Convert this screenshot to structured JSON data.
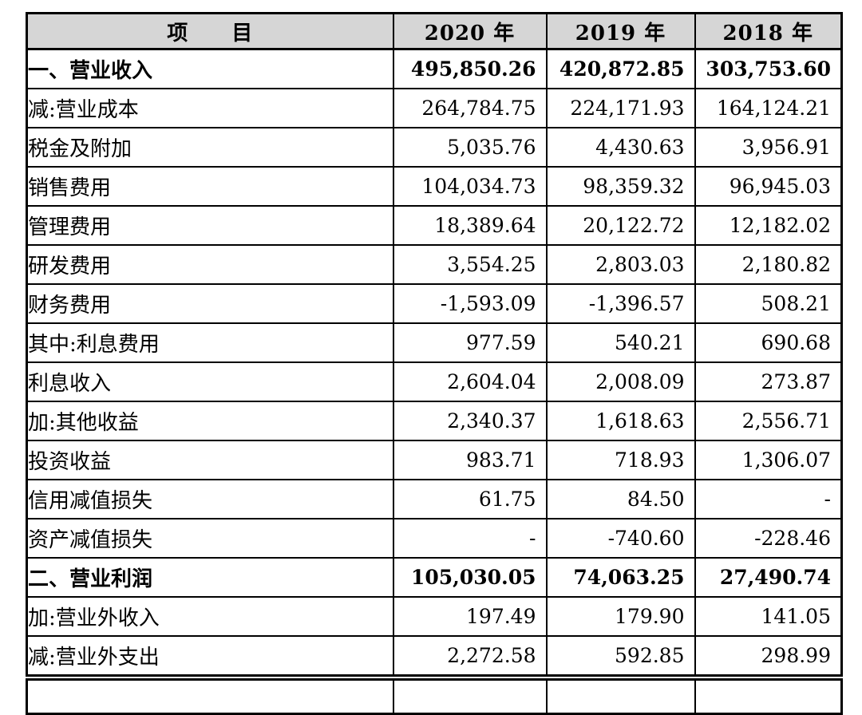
{
  "header": {
    "item_col": "项　　目",
    "year_cols": [
      "2020 年",
      "2019 年",
      "2018 年"
    ]
  },
  "table": {
    "rows": [
      {
        "label": "一、营业收入",
        "indent": 0,
        "bold": true,
        "values": [
          "495,850.26",
          "420,872.85",
          "303,753.60"
        ]
      },
      {
        "label": "减:营业成本",
        "indent": 1,
        "bold": false,
        "values": [
          "264,784.75",
          "224,171.93",
          "164,124.21"
        ]
      },
      {
        "label": "税金及附加",
        "indent": 2,
        "bold": false,
        "values": [
          "5,035.76",
          "4,430.63",
          "3,956.91"
        ]
      },
      {
        "label": "销售费用",
        "indent": 2,
        "bold": false,
        "values": [
          "104,034.73",
          "98,359.32",
          "96,945.03"
        ]
      },
      {
        "label": "管理费用",
        "indent": 2,
        "bold": false,
        "values": [
          "18,389.64",
          "20,122.72",
          "12,182.02"
        ]
      },
      {
        "label": "研发费用",
        "indent": 2,
        "bold": false,
        "values": [
          "3,554.25",
          "2,803.03",
          "2,180.82"
        ]
      },
      {
        "label": "财务费用",
        "indent": 2,
        "bold": false,
        "values": [
          "-1,593.09",
          "-1,396.57",
          "508.21"
        ]
      },
      {
        "label": "其中:利息费用",
        "indent": 3,
        "bold": false,
        "values": [
          "977.59",
          "540.21",
          "690.68"
        ]
      },
      {
        "label": "利息收入",
        "indent": 4,
        "bold": false,
        "values": [
          "2,604.04",
          "2,008.09",
          "273.87"
        ]
      },
      {
        "label": "加:其他收益",
        "indent": 1,
        "bold": false,
        "values": [
          "2,340.37",
          "1,618.63",
          "2,556.71"
        ]
      },
      {
        "label": "投资收益",
        "indent": 2,
        "bold": false,
        "values": [
          "983.71",
          "718.93",
          "1,306.07"
        ]
      },
      {
        "label": "信用减值损失",
        "indent": 2,
        "bold": false,
        "values": [
          "61.75",
          "84.50",
          "-"
        ]
      },
      {
        "label": "资产减值损失",
        "indent": 2,
        "bold": false,
        "values": [
          "-",
          "-740.60",
          "-228.46"
        ]
      },
      {
        "label": "二、营业利润",
        "indent": 0,
        "bold": true,
        "values": [
          "105,030.05",
          "74,063.25",
          "27,490.74"
        ]
      },
      {
        "label": "加:营业外收入",
        "indent": 1,
        "bold": false,
        "values": [
          "197.49",
          "179.90",
          "141.05"
        ]
      },
      {
        "label": "减:营业外支出",
        "indent": 1,
        "bold": false,
        "values": [
          "2,272.58",
          "592.85",
          "298.99"
        ]
      }
    ]
  }
}
